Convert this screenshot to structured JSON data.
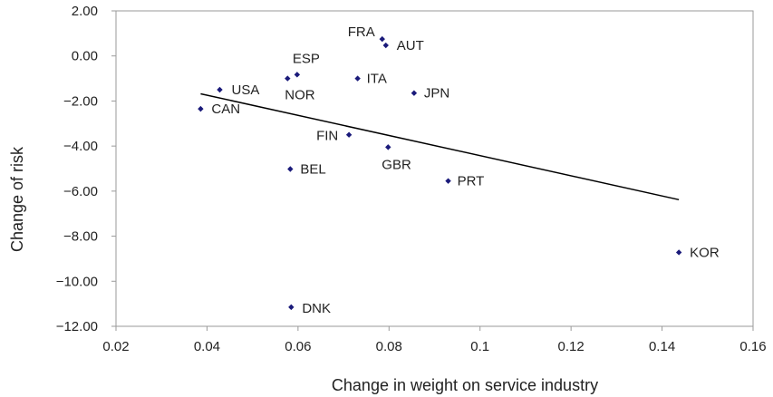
{
  "chart_data": {
    "type": "scatter",
    "title": "",
    "xlabel": "Change in weight on service industry",
    "ylabel": "Change of risk",
    "xlim": [
      0.02,
      0.16
    ],
    "ylim": [
      -12,
      2
    ],
    "xticks": [
      {
        "value": 0.02,
        "label": "0.02"
      },
      {
        "value": 0.04,
        "label": "0.04"
      },
      {
        "value": 0.06,
        "label": "0.06"
      },
      {
        "value": 0.08,
        "label": "0.08"
      },
      {
        "value": 0.1,
        "label": "0.1"
      },
      {
        "value": 0.12,
        "label": "0.12"
      },
      {
        "value": 0.14,
        "label": "0.14"
      },
      {
        "value": 0.16,
        "label": "0.16"
      }
    ],
    "yticks": [
      {
        "value": 2,
        "label": "2.00"
      },
      {
        "value": 0,
        "label": "0.00"
      },
      {
        "value": -2,
        "label": "−2.00"
      },
      {
        "value": -4,
        "label": "−4.00"
      },
      {
        "value": -6,
        "label": "−6.00"
      },
      {
        "value": -8,
        "label": "−8.00"
      },
      {
        "value": -10,
        "label": "−10.00"
      },
      {
        "value": -12,
        "label": "−12.00"
      }
    ],
    "grid": false,
    "point_color": "#1a1a7a",
    "line_color": "#000000",
    "points": [
      {
        "label": "FRA",
        "x": 0.0785,
        "y": 0.75
      },
      {
        "label": "AUT",
        "x": 0.0793,
        "y": 0.47
      },
      {
        "label": "ESP",
        "x": 0.0598,
        "y": -0.83
      },
      {
        "label": "NOR",
        "x": 0.0577,
        "y": -1.0
      },
      {
        "label": "ITA",
        "x": 0.0731,
        "y": -1.0
      },
      {
        "label": "USA",
        "x": 0.0428,
        "y": -1.5
      },
      {
        "label": "JPN",
        "x": 0.0855,
        "y": -1.65
      },
      {
        "label": "CAN",
        "x": 0.0386,
        "y": -2.35
      },
      {
        "label": "FIN",
        "x": 0.0712,
        "y": -3.5
      },
      {
        "label": "GBR",
        "x": 0.0798,
        "y": -4.05
      },
      {
        "label": "BEL",
        "x": 0.0583,
        "y": -5.02
      },
      {
        "label": "PRT",
        "x": 0.093,
        "y": -5.55
      },
      {
        "label": "KOR",
        "x": 0.1437,
        "y": -8.72
      },
      {
        "label": "DNK",
        "x": 0.0585,
        "y": -11.15
      }
    ],
    "trendline": {
      "x": [
        0.0386,
        0.1437
      ],
      "y": [
        -1.68,
        -6.38
      ]
    }
  }
}
